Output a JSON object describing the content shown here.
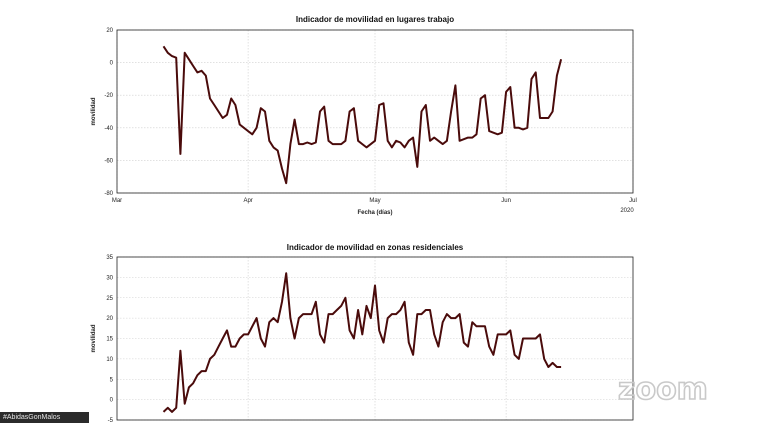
{
  "overlay": {
    "zoom_logo": "zoom",
    "name_tag": "#AbidasGonMalos"
  },
  "colors": {
    "series": "#4a0b0b"
  },
  "chart_data": [
    {
      "type": "line",
      "title": "Indicador de movilidad en lugares trabajo",
      "xlabel": "Fecha (días)",
      "ylabel": "movilidad",
      "ylim": [
        -80,
        20
      ],
      "yticks": [
        20,
        0,
        -20,
        -40,
        -60,
        -80
      ],
      "grid": true,
      "xlim": [
        0,
        122
      ],
      "xticks": [
        {
          "x": 0,
          "label": "Mar"
        },
        {
          "x": 31,
          "label": "Apr"
        },
        {
          "x": 61,
          "label": "May"
        },
        {
          "x": 92,
          "label": "Jun"
        },
        {
          "x": 122,
          "label": "Jul"
        }
      ],
      "corner_label": "2020",
      "series": [
        {
          "x": [
            11,
            12,
            13,
            14,
            15,
            16,
            17,
            18,
            19,
            20,
            21,
            22,
            23,
            24,
            25,
            26,
            27,
            28,
            29,
            30,
            31,
            32,
            33,
            34,
            35,
            36,
            37,
            38,
            39,
            40,
            41,
            42,
            43,
            44,
            45,
            46,
            47,
            48,
            49,
            50,
            51,
            52,
            53,
            54,
            55,
            56,
            57,
            58,
            59,
            60,
            61,
            62,
            63,
            64,
            65,
            66,
            67,
            68,
            69,
            70,
            71,
            72,
            73,
            74,
            75,
            76,
            77,
            78,
            79,
            80,
            81,
            82,
            83,
            84,
            85,
            86,
            87,
            88,
            89,
            90,
            91,
            92,
            93,
            94,
            95,
            96,
            97,
            98,
            99,
            100,
            101,
            102,
            103,
            104,
            105
          ],
          "values": [
            10,
            6,
            4,
            3,
            -56,
            6,
            2,
            -2,
            -6,
            -5,
            -8,
            -22,
            -26,
            -30,
            -34,
            -32,
            -22,
            -26,
            -38,
            -40,
            -42,
            -44,
            -40,
            -28,
            -30,
            -48,
            -52,
            -54,
            -65,
            -74,
            -50,
            -35,
            -50,
            -50,
            -49,
            -50,
            -49,
            -30,
            -27,
            -48,
            -50,
            -50,
            -50,
            -48,
            -30,
            -28,
            -48,
            -50,
            -52,
            -50,
            -48,
            -26,
            -25,
            -48,
            -52,
            -48,
            -49,
            -52,
            -48,
            -46,
            -64,
            -30,
            -26,
            -48,
            -46,
            -48,
            -50,
            -48,
            -30,
            -14,
            -48,
            -47,
            -46,
            -46,
            -44,
            -22,
            -20,
            -42,
            -43,
            -44,
            -43,
            -18,
            -15,
            -40,
            -40,
            -41,
            -40,
            -10,
            -6,
            -34,
            -34,
            -34,
            -30,
            -8,
            2
          ]
        }
      ]
    },
    {
      "type": "line",
      "title": "Indicador de movilidad en zonas residenciales",
      "xlabel": "",
      "ylabel": "movilidad",
      "ylim": [
        -5,
        35
      ],
      "yticks": [
        35,
        30,
        25,
        20,
        15,
        10,
        5,
        0,
        -5
      ],
      "grid": true,
      "xlim": [
        0,
        122
      ],
      "series": [
        {
          "x": [
            11,
            12,
            13,
            14,
            15,
            16,
            17,
            18,
            19,
            20,
            21,
            22,
            23,
            24,
            25,
            26,
            27,
            28,
            29,
            30,
            31,
            32,
            33,
            34,
            35,
            36,
            37,
            38,
            39,
            40,
            41,
            42,
            43,
            44,
            45,
            46,
            47,
            48,
            49,
            50,
            51,
            52,
            53,
            54,
            55,
            56,
            57,
            58,
            59,
            60,
            61,
            62,
            63,
            64,
            65,
            66,
            67,
            68,
            69,
            70,
            71,
            72,
            73,
            74,
            75,
            76,
            77,
            78,
            79,
            80,
            81,
            82,
            83,
            84,
            85,
            86,
            87,
            88,
            89,
            90,
            91,
            92,
            93,
            94,
            95,
            96,
            97,
            98,
            99,
            100,
            101,
            102,
            103,
            104,
            105
          ],
          "values": [
            -3,
            -2,
            -3,
            -2,
            12,
            -1,
            3,
            4,
            6,
            7,
            7,
            10,
            11,
            13,
            15,
            17,
            13,
            13,
            15,
            16,
            16,
            18,
            20,
            15,
            13,
            19,
            20,
            19,
            24,
            31,
            20,
            15,
            20,
            21,
            21,
            21,
            24,
            16,
            14,
            21,
            21,
            22,
            23,
            25,
            17,
            15,
            22,
            16,
            23,
            20,
            28,
            17,
            14,
            20,
            21,
            21,
            22,
            24,
            14,
            11,
            21,
            21,
            22,
            22,
            16,
            13,
            19,
            21,
            20,
            20,
            21,
            14,
            13,
            19,
            18,
            18,
            18,
            13,
            11,
            16,
            16,
            16,
            17,
            11,
            10,
            15,
            15,
            15,
            15,
            16,
            10,
            8,
            9,
            8,
            8
          ]
        }
      ]
    }
  ]
}
